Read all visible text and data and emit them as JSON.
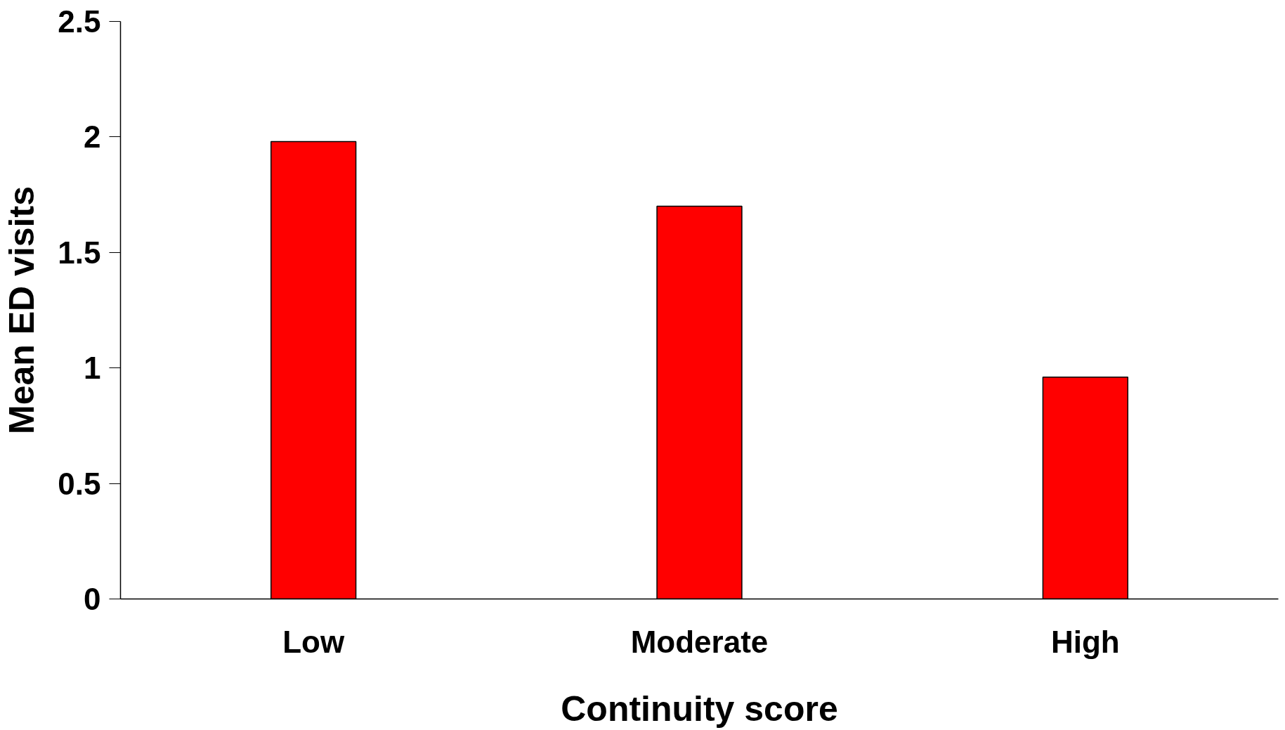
{
  "chart_data": {
    "type": "bar",
    "xlabel": "Continuity score",
    "ylabel": "Mean ED visits",
    "categories": [
      "Low",
      "Moderate",
      "High"
    ],
    "values": [
      1.98,
      1.7,
      0.96
    ],
    "color": "#ff0000",
    "ylim": [
      0,
      2.5
    ],
    "yticks": [
      0,
      0.5,
      1,
      1.5,
      2,
      2.5
    ],
    "grid": false
  }
}
